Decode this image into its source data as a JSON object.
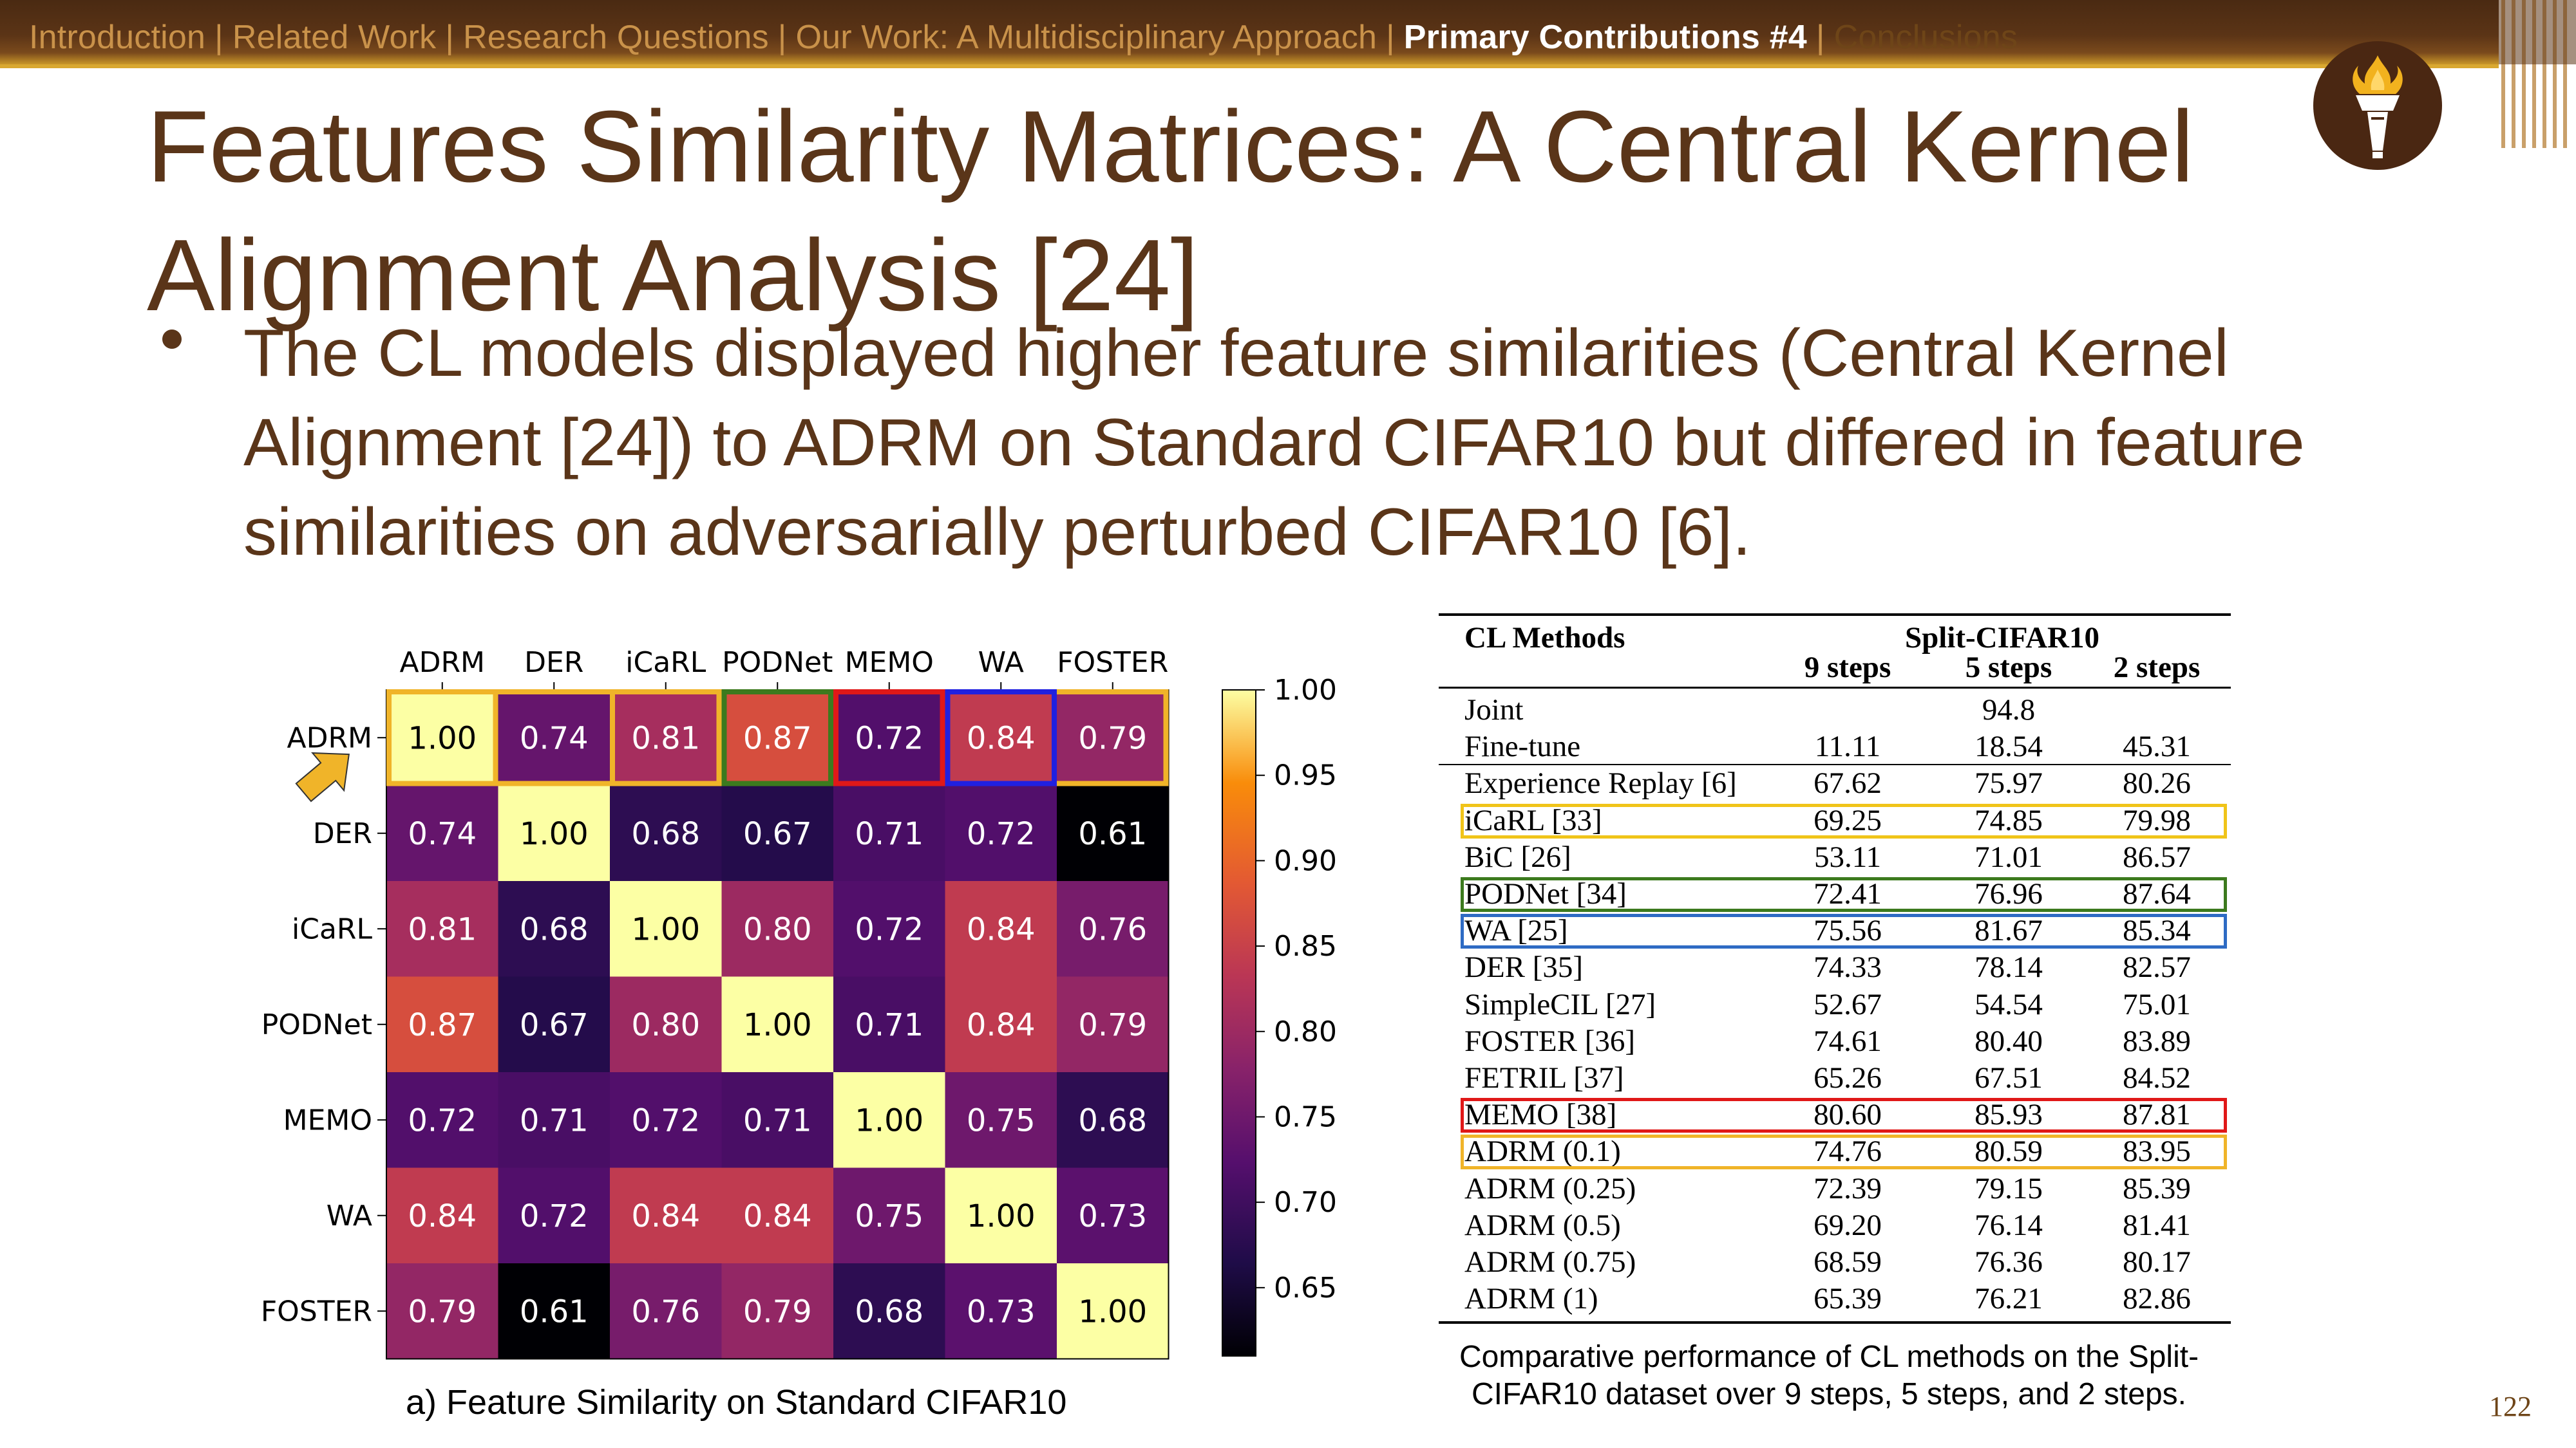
{
  "nav": {
    "items": [
      {
        "label": "Introduction",
        "state": "normal"
      },
      {
        "label": "Related Work",
        "state": "normal"
      },
      {
        "label": "Research Questions",
        "state": "normal"
      },
      {
        "label": "Our Work: A Multidisciplinary Approach",
        "state": "normal"
      },
      {
        "label": "Primary Contributions #4",
        "state": "active"
      },
      {
        "label": "Conclusions",
        "state": "dim"
      }
    ],
    "separator": "|"
  },
  "logo": {
    "icon": "torch-icon"
  },
  "slide": {
    "title": "Features Similarity Matrices: A Central Kernel Alignment Analysis [24]",
    "bullet": "The CL models displayed higher feature similarities (Central Kernel Alignment [24]) to ADRM on Standard CIFAR10 but differed in feature similarities on adversarially perturbed CIFAR10 [6].",
    "page_number": "122"
  },
  "colors": {
    "brown": "#5a3519",
    "gold": "#d9a830",
    "highlight_yellow": "#f0b429",
    "highlight_green": "#3c7a1e",
    "highlight_red": "#e01818",
    "highlight_blue": "#2020e0",
    "table_blue": "#2e6bc4"
  },
  "heatmap": {
    "caption": "a) Feature Similarity on Standard CIFAR10",
    "labels": [
      "ADRM",
      "DER",
      "iCaRL",
      "PODNet",
      "MEMO",
      "WA",
      "FOSTER"
    ],
    "matrix": [
      [
        1.0,
        0.74,
        0.81,
        0.87,
        0.72,
        0.84,
        0.79
      ],
      [
        0.74,
        1.0,
        0.68,
        0.67,
        0.71,
        0.72,
        0.61
      ],
      [
        0.81,
        0.68,
        1.0,
        0.8,
        0.72,
        0.84,
        0.76
      ],
      [
        0.87,
        0.67,
        0.8,
        1.0,
        0.71,
        0.84,
        0.79
      ],
      [
        0.72,
        0.71,
        0.72,
        0.71,
        1.0,
        0.75,
        0.68
      ],
      [
        0.84,
        0.72,
        0.84,
        0.84,
        0.75,
        1.0,
        0.73
      ],
      [
        0.79,
        0.61,
        0.76,
        0.79,
        0.68,
        0.73,
        1.0
      ]
    ],
    "colorbar_ticks": [
      "1.00",
      "0.95",
      "0.90",
      "0.85",
      "0.80",
      "0.75",
      "0.70",
      "0.65"
    ],
    "vmin": 0.61,
    "vmax": 1.0,
    "highlights": [
      {
        "col": 0,
        "color": "#f0b429"
      },
      {
        "col": 2,
        "color": "#f0b429"
      },
      {
        "col": 3,
        "color": "#3c7a1e"
      },
      {
        "col": 4,
        "color": "#e01818"
      },
      {
        "col": 5,
        "color": "#2020e0"
      }
    ],
    "arrows": [
      {
        "col": 2,
        "color": "#f0c419"
      },
      {
        "col": 3,
        "color": "#4d8a1e"
      },
      {
        "col": 4,
        "color": "#e81010"
      },
      {
        "col": 5,
        "color": "#3a18e8"
      },
      {
        "row": 0,
        "color": "#f0b429"
      }
    ]
  },
  "table": {
    "header": {
      "col0": "CL Methods",
      "group": "Split-CIFAR10",
      "steps": [
        "9 steps",
        "5 steps",
        "2 steps"
      ]
    },
    "rows": [
      {
        "method": "Joint",
        "v": [
          "",
          "94.8",
          ""
        ]
      },
      {
        "method": "Fine-tune",
        "v": [
          "11.11",
          "18.54",
          "45.31"
        ]
      },
      {
        "method": "Experience Replay [6]",
        "v": [
          "67.62",
          "75.97",
          "80.26"
        ]
      },
      {
        "method": "iCaRL [33]",
        "v": [
          "69.25",
          "74.85",
          "79.98"
        ]
      },
      {
        "method": "BiC [26]",
        "v": [
          "53.11",
          "71.01",
          "86.57"
        ]
      },
      {
        "method": "PODNet [34]",
        "v": [
          "72.41",
          "76.96",
          "87.64"
        ]
      },
      {
        "method": "WA [25]",
        "v": [
          "75.56",
          "81.67",
          "85.34"
        ]
      },
      {
        "method": "DER [35]",
        "v": [
          "74.33",
          "78.14",
          "82.57"
        ]
      },
      {
        "method": "SimpleCIL [27]",
        "v": [
          "52.67",
          "54.54",
          "75.01"
        ]
      },
      {
        "method": "FOSTER [36]",
        "v": [
          "74.61",
          "80.40",
          "83.89"
        ]
      },
      {
        "method": "FETRIL [37]",
        "v": [
          "65.26",
          "67.51",
          "84.52"
        ]
      },
      {
        "method": "MEMO [38]",
        "v": [
          "80.60",
          "85.93",
          "87.81"
        ]
      },
      {
        "method": "ADRM (0.1)",
        "v": [
          "74.76",
          "80.59",
          "83.95"
        ]
      },
      {
        "method": "ADRM (0.25)",
        "v": [
          "72.39",
          "79.15",
          "85.39"
        ]
      },
      {
        "method": "ADRM (0.5)",
        "v": [
          "69.20",
          "76.14",
          "81.41"
        ]
      },
      {
        "method": "ADRM (0.75)",
        "v": [
          "68.59",
          "76.36",
          "80.17"
        ]
      },
      {
        "method": "ADRM (1)",
        "v": [
          "65.39",
          "76.21",
          "82.86"
        ]
      }
    ],
    "highlights": [
      {
        "row": 3,
        "color": "#f0c419"
      },
      {
        "row": 5,
        "color": "#3c7a1e"
      },
      {
        "row": 6,
        "color": "#2e6bc4"
      },
      {
        "row": 11,
        "color": "#e01818"
      },
      {
        "row": 12,
        "color": "#f0b429"
      }
    ],
    "caption": "Comparative performance of CL methods on the Split-CIFAR10 dataset over 9 steps, 5 steps, and 2 steps."
  }
}
